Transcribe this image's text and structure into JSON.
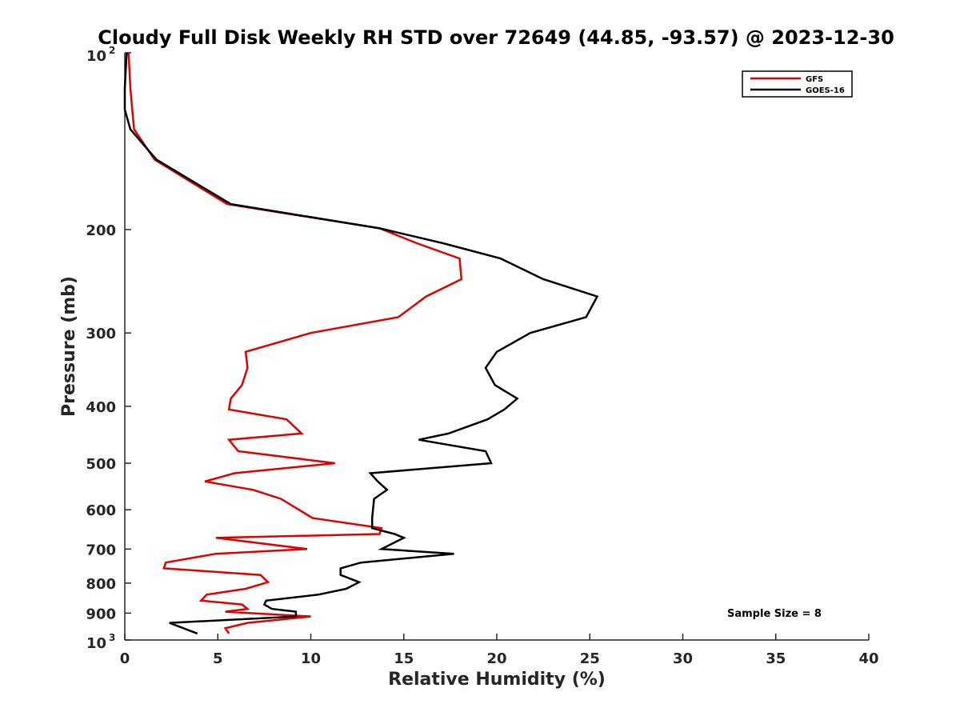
{
  "chart_data": {
    "type": "line",
    "title": "Cloudy Full Disk Weekly RH STD over 72649 (44.85, -93.57) @ 2023-12-30",
    "xlabel": "Relative Humidity (%)",
    "ylabel": "Pressure (mb)",
    "xlim": [
      0,
      40
    ],
    "ylim": [
      100,
      1000
    ],
    "y_scale": "log",
    "y_reversed": true,
    "grid": false,
    "legend_position": "top-right",
    "x_ticks": [
      {
        "value": 0,
        "label": "0"
      },
      {
        "value": 5,
        "label": "5"
      },
      {
        "value": 10,
        "label": "10"
      },
      {
        "value": 15,
        "label": "15"
      },
      {
        "value": 20,
        "label": "20"
      },
      {
        "value": 25,
        "label": "25"
      },
      {
        "value": 30,
        "label": "30"
      },
      {
        "value": 35,
        "label": "35"
      },
      {
        "value": 40,
        "label": "40"
      }
    ],
    "y_ticks": [
      {
        "value": 100,
        "base": "10",
        "exp": "2"
      },
      {
        "value": 200,
        "label": "200"
      },
      {
        "value": 300,
        "label": "300"
      },
      {
        "value": 400,
        "label": "400"
      },
      {
        "value": 500,
        "label": "500"
      },
      {
        "value": 600,
        "label": "600"
      },
      {
        "value": 700,
        "label": "700"
      },
      {
        "value": 800,
        "label": "800"
      },
      {
        "value": 900,
        "label": "900"
      },
      {
        "value": 1000,
        "base": "10",
        "exp": "3"
      }
    ],
    "series": [
      {
        "name": "GFS",
        "color": "#e00000",
        "points": [
          [
            0.2,
            100
          ],
          [
            0.3,
            115
          ],
          [
            0.4,
            125
          ],
          [
            0.5,
            135
          ],
          [
            1.6,
            152
          ],
          [
            5.5,
            181
          ],
          [
            13.7,
            199
          ],
          [
            15.7,
            211
          ],
          [
            18.0,
            224
          ],
          [
            18.1,
            243
          ],
          [
            16.2,
            260
          ],
          [
            14.7,
            282
          ],
          [
            10.0,
            300
          ],
          [
            6.5,
            323
          ],
          [
            6.6,
            344
          ],
          [
            6.3,
            368
          ],
          [
            5.7,
            388
          ],
          [
            5.6,
            405
          ],
          [
            8.7,
            421
          ],
          [
            9.5,
            445
          ],
          [
            5.6,
            456
          ],
          [
            6.1,
            477
          ],
          [
            11.3,
            500
          ],
          [
            5.9,
            520
          ],
          [
            4.3,
            537
          ],
          [
            6.9,
            555
          ],
          [
            8.4,
            575
          ],
          [
            10.1,
            620
          ],
          [
            13.8,
            645
          ],
          [
            13.7,
            660
          ],
          [
            4.9,
            670
          ],
          [
            9.8,
            700
          ],
          [
            4.9,
            713
          ],
          [
            2.2,
            738
          ],
          [
            2.1,
            755
          ],
          [
            7.3,
            775
          ],
          [
            7.7,
            797
          ],
          [
            6.5,
            818
          ],
          [
            4.4,
            837
          ],
          [
            4.1,
            857
          ],
          [
            6.3,
            870
          ],
          [
            6.6,
            885
          ],
          [
            5.4,
            895
          ],
          [
            10.0,
            912
          ],
          [
            6.6,
            935
          ],
          [
            5.4,
            955
          ],
          [
            5.6,
            975
          ]
        ]
      },
      {
        "name": "GOES-16",
        "color": "#000000",
        "points": [
          [
            0.1,
            100
          ],
          [
            0.0,
            115
          ],
          [
            0.0,
            125
          ],
          [
            0.3,
            135
          ],
          [
            1.7,
            152
          ],
          [
            5.7,
            181
          ],
          [
            13.7,
            199
          ],
          [
            17.1,
            211
          ],
          [
            20.2,
            224
          ],
          [
            22.5,
            243
          ],
          [
            25.4,
            260
          ],
          [
            24.8,
            282
          ],
          [
            21.8,
            300
          ],
          [
            20.0,
            323
          ],
          [
            19.4,
            344
          ],
          [
            19.9,
            368
          ],
          [
            21.1,
            388
          ],
          [
            20.4,
            405
          ],
          [
            19.5,
            421
          ],
          [
            17.4,
            445
          ],
          [
            15.8,
            456
          ],
          [
            19.4,
            477
          ],
          [
            19.7,
            500
          ],
          [
            13.2,
            520
          ],
          [
            13.6,
            537
          ],
          [
            14.1,
            555
          ],
          [
            13.4,
            575
          ],
          [
            13.3,
            620
          ],
          [
            13.3,
            645
          ],
          [
            14.5,
            660
          ],
          [
            15.0,
            670
          ],
          [
            13.8,
            700
          ],
          [
            17.7,
            713
          ],
          [
            12.7,
            738
          ],
          [
            11.6,
            755
          ],
          [
            11.6,
            775
          ],
          [
            12.6,
            797
          ],
          [
            11.9,
            818
          ],
          [
            10.4,
            837
          ],
          [
            7.6,
            857
          ],
          [
            7.5,
            870
          ],
          [
            7.9,
            885
          ],
          [
            9.2,
            895
          ],
          [
            9.2,
            912
          ],
          [
            2.4,
            935
          ],
          [
            3.9,
            975
          ]
        ]
      }
    ],
    "annotations": [
      "Sample Size = 8"
    ]
  }
}
